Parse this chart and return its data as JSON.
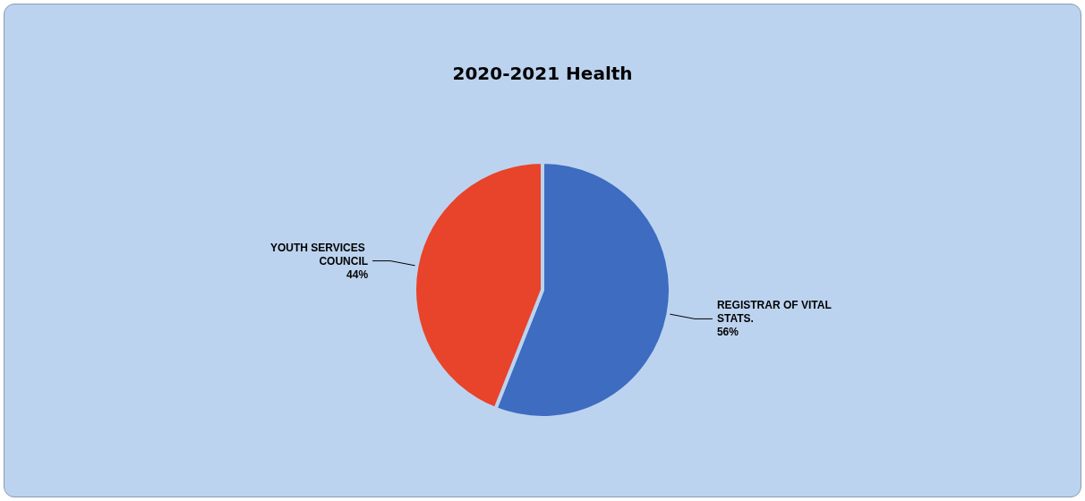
{
  "chart_data": {
    "type": "pie",
    "title": "2020-2021 Health",
    "categories": [
      "REGISTRAR OF VITAL STATS.",
      "YOUTH SERVICES COUNCIL"
    ],
    "values": [
      56,
      44
    ],
    "colors": [
      "#3d6cc0",
      "#e8432b"
    ],
    "value_labels": [
      "56%",
      "44%"
    ],
    "legend": false
  }
}
